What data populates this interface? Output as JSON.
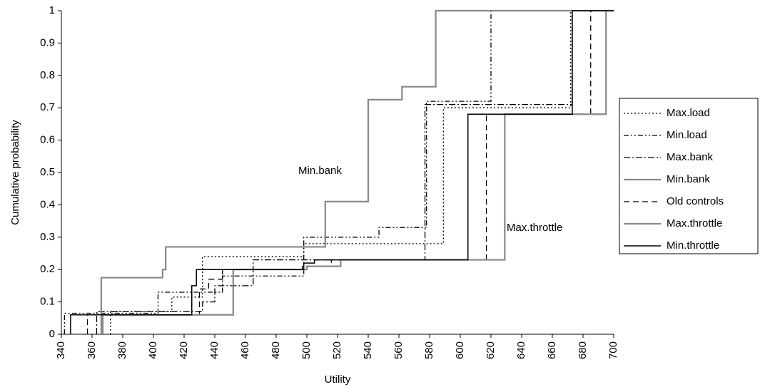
{
  "chart_data": {
    "type": "line",
    "line_shape": "step",
    "xlabel": "Utility",
    "ylabel": "Cumulative probability",
    "xlim": [
      340,
      700
    ],
    "xticks": [
      340,
      360,
      380,
      400,
      420,
      440,
      460,
      480,
      500,
      520,
      540,
      560,
      580,
      600,
      620,
      640,
      660,
      680,
      700
    ],
    "ylim": [
      0,
      1
    ],
    "yticks": [
      0,
      0.1,
      0.2,
      0.3,
      0.4,
      0.5,
      0.6,
      0.7,
      0.8,
      0.9,
      1
    ],
    "legend": "right",
    "annotations": [
      {
        "text": "Min.bank",
        "x": 510,
        "y": 0.5
      },
      {
        "text": "Max.throttle",
        "x": 630,
        "y": 0.33
      }
    ],
    "series": [
      {
        "name": "Max.load",
        "color": "#000000",
        "dash": "2,3",
        "width": 1.3,
        "x": [
          372,
          412,
          432,
          498,
          589,
          672
        ],
        "values": [
          0.07,
          0.115,
          0.24,
          0.28,
          0.7,
          1
        ]
      },
      {
        "name": "Min.load",
        "color": "#000000",
        "dash": "7,3,2,3,2,3",
        "width": 1.3,
        "x": [
          342,
          403,
          445,
          498,
          547,
          578,
          620
        ],
        "values": [
          0.065,
          0.13,
          0.18,
          0.3,
          0.33,
          0.72,
          1
        ]
      },
      {
        "name": "Max.bank",
        "color": "#000000",
        "dash": "9,3,2,3",
        "width": 1.3,
        "x": [
          363,
          432,
          440,
          465,
          577,
          673
        ],
        "values": [
          0.07,
          0.1,
          0.15,
          0.23,
          0.71,
          1
        ]
      },
      {
        "name": "Min.bank",
        "color": "#888888",
        "dash": "none",
        "width": 2.2,
        "x": [
          366,
          406,
          408,
          512,
          540,
          562,
          584
        ],
        "values": [
          0.175,
          0.2,
          0.27,
          0.41,
          0.725,
          0.765,
          1
        ]
      },
      {
        "name": "Old controls",
        "color": "#000000",
        "dash": "8,5",
        "width": 1.3,
        "x": [
          357,
          430,
          436,
          445,
          497,
          516,
          617,
          685
        ],
        "values": [
          0.06,
          0.14,
          0.17,
          0.2,
          0.21,
          0.23,
          0.68,
          1
        ]
      },
      {
        "name": "Max.throttle",
        "color": "#888888",
        "dash": "none",
        "width": 2.2,
        "x": [
          367,
          452,
          500,
          522,
          629,
          695
        ],
        "values": [
          0.06,
          0.2,
          0.21,
          0.23,
          0.68,
          1
        ]
      },
      {
        "name": "Min.throttle",
        "color": "#000000",
        "dash": "none",
        "width": 1.5,
        "x": [
          346,
          425,
          428,
          498,
          505,
          605,
          673
        ],
        "values": [
          0.06,
          0.15,
          0.2,
          0.22,
          0.23,
          0.68,
          1
        ]
      }
    ]
  }
}
